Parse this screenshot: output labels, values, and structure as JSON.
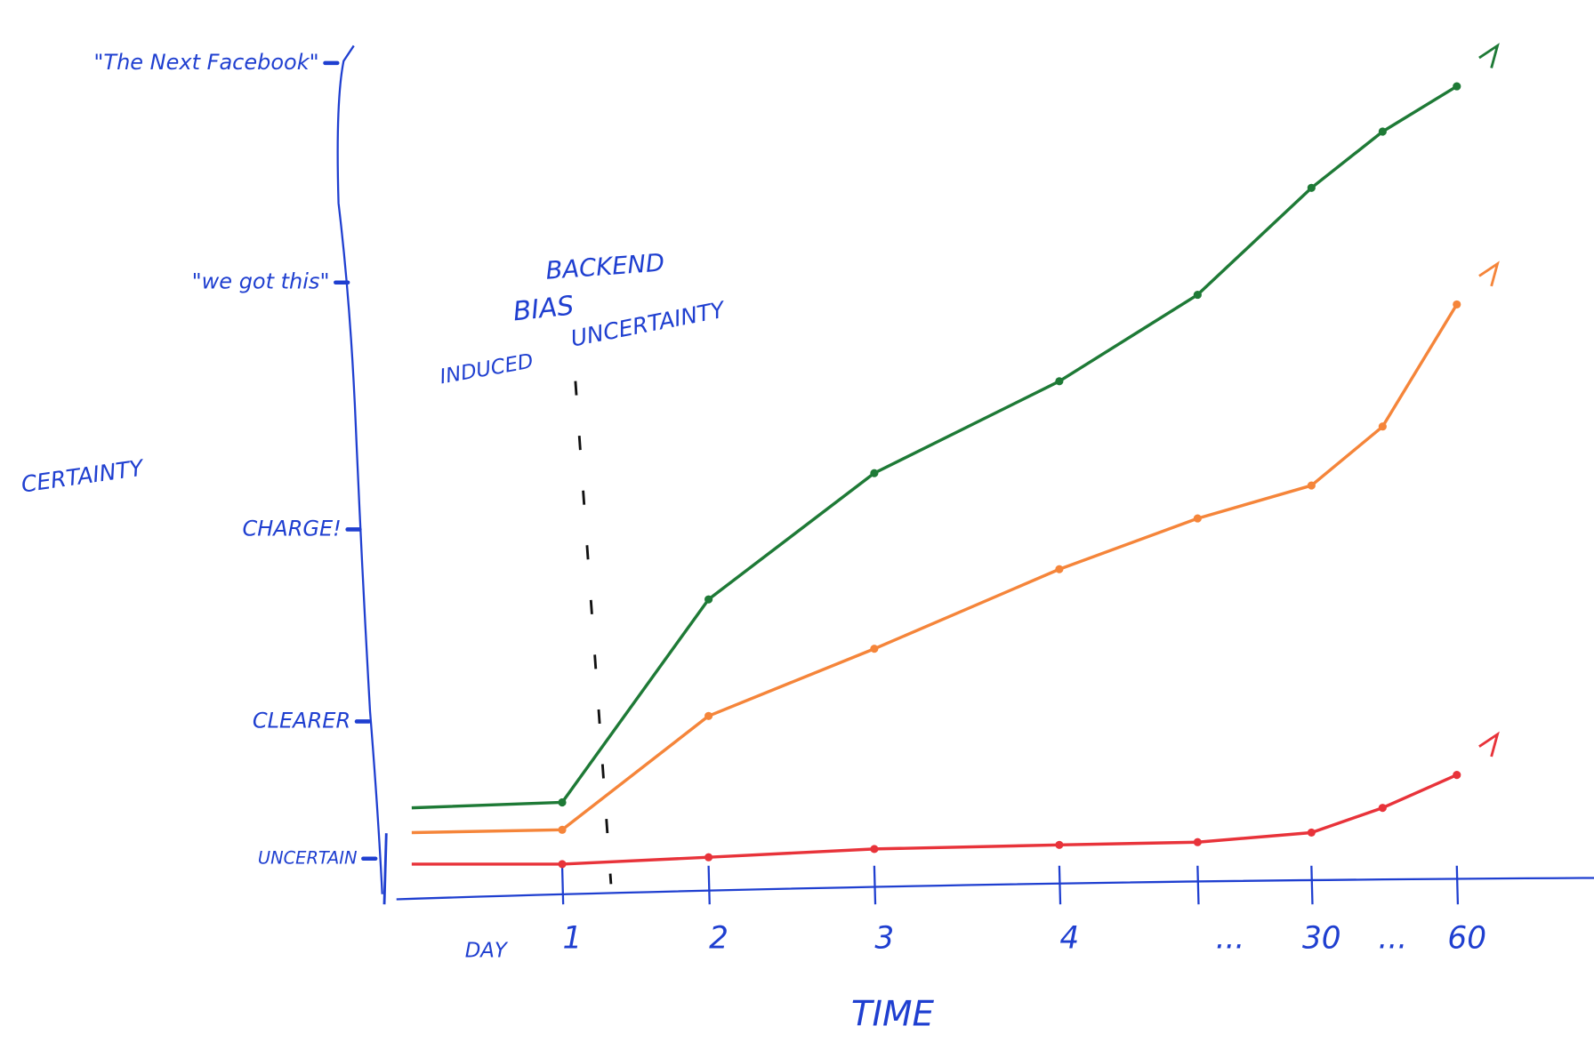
{
  "chart_data": {
    "type": "line",
    "xlabel": "TIME",
    "ylabel": "CERTAINTY",
    "day_label": "DAY",
    "annotations": [
      "BACKEND",
      "BIAS",
      "INDUCED",
      "UNCERTAINTY"
    ],
    "categories": [
      null,
      "1",
      "2",
      "3",
      "4",
      "...",
      "30",
      "...",
      "60"
    ],
    "series": [
      {
        "color": "#1e7a36",
        "values": [
          0.37,
          0.41,
          1.89,
          2.81,
          3.48,
          4.11,
          4.89,
          5.3,
          5.63
        ]
      },
      {
        "color": "#f5853a",
        "values": [
          0.19,
          0.21,
          1.04,
          1.53,
          2.11,
          2.48,
          2.72,
          3.15,
          4.04
        ]
      },
      {
        "color": "#e8333a",
        "values": [
          -0.04,
          -0.04,
          0.01,
          0.07,
          0.1,
          0.12,
          0.19,
          0.37,
          0.61
        ]
      }
    ],
    "ylim": [
      -0.3,
      6.1
    ],
    "yticks": [
      {
        "value": 0,
        "label": "UNCERTAIN"
      },
      {
        "value": 1,
        "label": "CLEARER"
      },
      {
        "value": 2.4,
        "label": "CHARGE!"
      },
      {
        "value": 4.2,
        "label": "\"we got this\""
      },
      {
        "value": 5.8,
        "label": "\"The Next Facebook\""
      }
    ],
    "axis_color": "#1f3fd0"
  }
}
